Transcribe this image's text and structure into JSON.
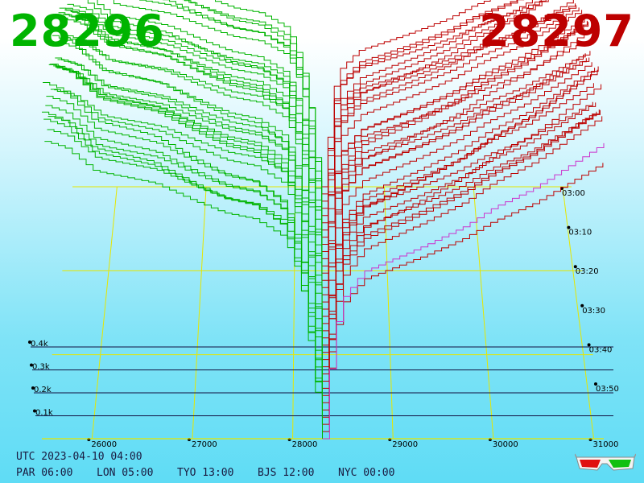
{
  "header": {
    "bid_price": "28296",
    "ask_price": "28297"
  },
  "footer": {
    "utc": "UTC 2023-04-10 04:00",
    "timezones": [
      "PAR 06:00",
      "LON 05:00",
      "TYO 13:00",
      "BJS 12:00",
      "NYC 00:00"
    ]
  },
  "colors": {
    "bid": "#00b400",
    "ask": "#bd0000",
    "grid": "#e6e600",
    "depth_axis": "#101040",
    "last_ask": "#cc33cc"
  },
  "icon": "3d-glasses-icon",
  "chart_data": {
    "type": "area",
    "projection": "3d-depth-over-time",
    "mid_price": 28296.5,
    "x_ticks": [
      "26000",
      "27000",
      "28000",
      "29000",
      "30000",
      "31000"
    ],
    "x_range": [
      25500,
      31100
    ],
    "z_ticks": [
      "0.1k",
      "0.2k",
      "0.3k",
      "0.4k"
    ],
    "z_range": [
      0,
      0.5
    ],
    "t_ticks": [
      "03:00",
      "03:10",
      "03:20",
      "03:30",
      "03:40",
      "03:50"
    ],
    "t_range": [
      "02:58",
      "04:00"
    ],
    "snapshots": 36,
    "series": [
      {
        "name": "bids",
        "side": "bid",
        "prices": [
          25500,
          25700,
          26000,
          26300,
          26600,
          27000,
          27300,
          27600,
          27900,
          28000,
          28100,
          28200,
          28296
        ],
        "cumulative": [
          0.46,
          0.45,
          0.41,
          0.4,
          0.39,
          0.36,
          0.34,
          0.33,
          0.3,
          0.26,
          0.2,
          0.09,
          0.0
        ]
      },
      {
        "name": "asks",
        "side": "ask",
        "prices": [
          28297,
          28400,
          28500,
          28700,
          29000,
          29300,
          29700,
          30000,
          30400,
          30800,
          31100
        ],
        "cumulative": [
          0.0,
          0.16,
          0.22,
          0.26,
          0.28,
          0.3,
          0.33,
          0.36,
          0.39,
          0.43,
          0.46
        ]
      }
    ]
  }
}
